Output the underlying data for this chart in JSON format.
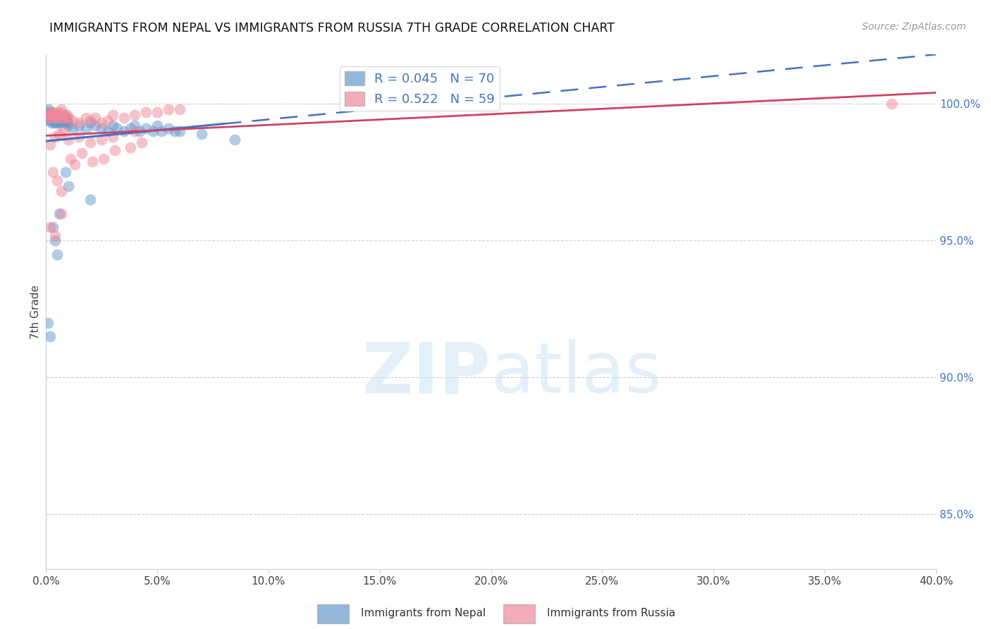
{
  "title": "IMMIGRANTS FROM NEPAL VS IMMIGRANTS FROM RUSSIA 7TH GRADE CORRELATION CHART",
  "source": "Source: ZipAtlas.com",
  "ylabel": "7th Grade",
  "xlim": [
    0.0,
    40.0
  ],
  "ylim": [
    83.0,
    101.8
  ],
  "right_yticks": [
    85.0,
    90.0,
    95.0,
    100.0
  ],
  "xticks": [
    0.0,
    5.0,
    10.0,
    15.0,
    20.0,
    25.0,
    30.0,
    35.0,
    40.0
  ],
  "nepal_color": "#6699cc",
  "russia_color": "#ee8899",
  "nepal_line_color": "#4472c4",
  "russia_line_color": "#cc4466",
  "nepal_R": 0.045,
  "nepal_N": 70,
  "russia_R": 0.522,
  "russia_N": 59,
  "legend_label_nepal": "Immigrants from Nepal",
  "legend_label_russia": "Immigrants from Russia",
  "nepal_solid_end": 8.0,
  "nepal_x": [
    0.05,
    0.08,
    0.1,
    0.12,
    0.15,
    0.18,
    0.2,
    0.22,
    0.25,
    0.28,
    0.3,
    0.32,
    0.35,
    0.38,
    0.4,
    0.42,
    0.45,
    0.48,
    0.5,
    0.52,
    0.55,
    0.58,
    0.6,
    0.62,
    0.65,
    0.68,
    0.7,
    0.72,
    0.75,
    0.78,
    0.8,
    0.82,
    0.85,
    0.88,
    0.9,
    0.92,
    0.95,
    0.98,
    1.0,
    1.2,
    1.5,
    1.8,
    2.0,
    2.2,
    2.5,
    2.8,
    3.0,
    3.2,
    3.5,
    3.8,
    4.0,
    4.2,
    4.5,
    4.8,
    5.0,
    5.2,
    5.5,
    5.8,
    6.0,
    7.0,
    8.5,
    1.0,
    2.0,
    0.3,
    0.5,
    0.1,
    0.2,
    0.4,
    0.6,
    0.9
  ],
  "nepal_y": [
    99.5,
    99.6,
    99.7,
    99.8,
    99.4,
    99.5,
    99.6,
    99.7,
    99.3,
    99.4,
    99.5,
    99.6,
    99.4,
    99.3,
    99.5,
    99.6,
    99.4,
    99.3,
    99.5,
    99.4,
    99.3,
    99.5,
    99.6,
    99.4,
    99.3,
    99.5,
    99.6,
    99.4,
    99.3,
    99.5,
    99.4,
    99.3,
    99.5,
    99.4,
    99.3,
    99.5,
    99.4,
    99.3,
    99.2,
    99.1,
    99.2,
    99.1,
    99.3,
    99.2,
    99.1,
    99.0,
    99.2,
    99.1,
    99.0,
    99.1,
    99.2,
    99.0,
    99.1,
    99.0,
    99.2,
    99.0,
    99.1,
    99.0,
    99.0,
    98.9,
    98.7,
    97.0,
    96.5,
    95.5,
    94.5,
    92.0,
    91.5,
    95.0,
    96.0,
    97.5
  ],
  "russia_x": [
    0.05,
    0.1,
    0.15,
    0.2,
    0.25,
    0.3,
    0.35,
    0.4,
    0.45,
    0.5,
    0.55,
    0.6,
    0.65,
    0.7,
    0.75,
    0.8,
    0.85,
    0.9,
    0.95,
    1.0,
    1.2,
    1.5,
    1.8,
    2.0,
    2.2,
    2.5,
    2.8,
    3.0,
    3.5,
    4.0,
    4.5,
    5.0,
    5.5,
    6.0,
    0.2,
    0.4,
    0.6,
    0.8,
    1.0,
    1.5,
    2.0,
    2.5,
    3.0,
    4.0,
    0.3,
    0.5,
    0.7,
    1.1,
    1.3,
    1.6,
    2.1,
    2.6,
    3.1,
    3.8,
    4.3,
    38.0,
    0.2,
    0.4,
    0.7
  ],
  "russia_y": [
    99.6,
    99.5,
    99.7,
    99.6,
    99.5,
    99.7,
    99.6,
    99.5,
    99.6,
    99.7,
    99.5,
    99.6,
    99.7,
    99.8,
    99.6,
    99.5,
    99.6,
    99.5,
    99.6,
    99.5,
    99.4,
    99.3,
    99.5,
    99.4,
    99.5,
    99.3,
    99.4,
    99.6,
    99.5,
    99.6,
    99.7,
    99.7,
    99.8,
    99.8,
    98.5,
    98.8,
    98.9,
    99.0,
    98.7,
    98.8,
    98.6,
    98.7,
    98.8,
    99.0,
    97.5,
    97.2,
    96.8,
    98.0,
    97.8,
    98.2,
    97.9,
    98.0,
    98.3,
    98.4,
    98.6,
    100.0,
    95.5,
    95.2,
    96.0
  ]
}
